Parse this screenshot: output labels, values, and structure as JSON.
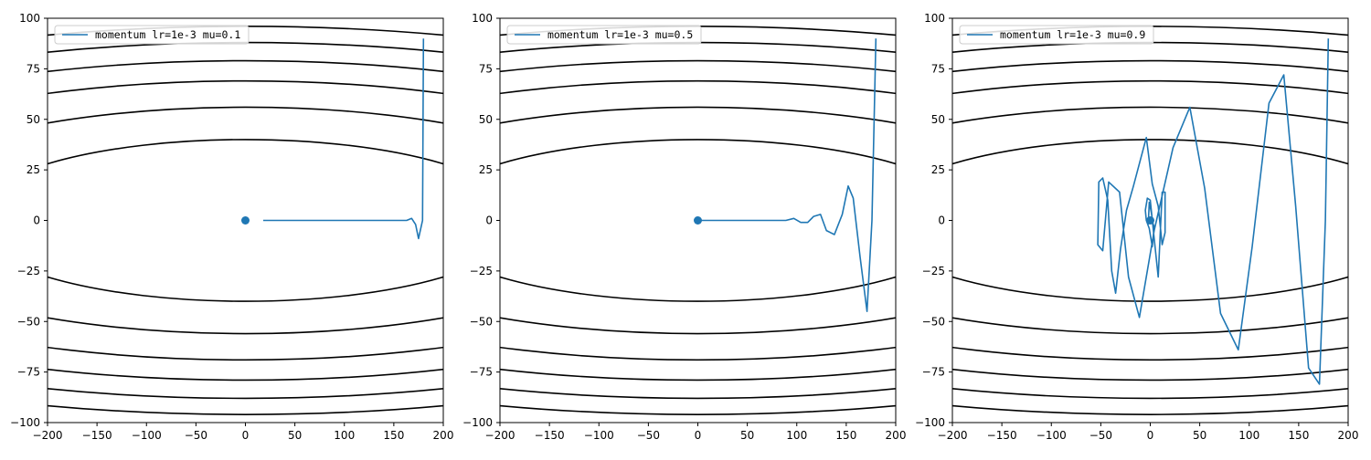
{
  "figure": {
    "background": "#ffffff"
  },
  "chart_data": [
    {
      "type": "line",
      "title": "",
      "xlabel": "",
      "ylabel": "",
      "xlim": [
        -200,
        200
      ],
      "ylim": [
        -100,
        100
      ],
      "xticks": [
        -200,
        -150,
        -100,
        -50,
        0,
        50,
        100,
        150,
        200
      ],
      "yticks": [
        -100,
        -75,
        -50,
        -25,
        0,
        25,
        50,
        75,
        100
      ],
      "grid": false,
      "legend": {
        "position": "upper-left",
        "entries": [
          "momentum lr=1e-3 mu=0.1"
        ]
      },
      "contour": {
        "color": "#000000",
        "levels": [
          40,
          56,
          69,
          79,
          88,
          96
        ]
      },
      "series": [
        {
          "name": "momentum lr=1e-3 mu=0.1",
          "color": "#1f77b4",
          "x": [
            180,
            179,
            175,
            172,
            168,
            163,
            150,
            120,
            80,
            40,
            18
          ],
          "y": [
            90,
            0,
            -9,
            -2,
            1,
            0,
            0,
            0,
            0,
            0,
            0
          ]
        }
      ],
      "marker": {
        "x": 0,
        "y": 0,
        "color": "#1f77b4"
      }
    },
    {
      "type": "line",
      "title": "",
      "xlabel": "",
      "ylabel": "",
      "xlim": [
        -200,
        200
      ],
      "ylim": [
        -100,
        100
      ],
      "xticks": [
        -200,
        -150,
        -100,
        -50,
        0,
        50,
        100,
        150,
        200
      ],
      "yticks": [
        -100,
        -75,
        -50,
        -25,
        0,
        25,
        50,
        75,
        100
      ],
      "grid": false,
      "legend": {
        "position": "upper-left",
        "entries": [
          "momentum lr=1e-3 mu=0.5"
        ]
      },
      "contour": {
        "color": "#000000",
        "levels": [
          40,
          56,
          69,
          79,
          88,
          96
        ]
      },
      "series": [
        {
          "name": "momentum lr=1e-3 mu=0.5",
          "color": "#1f77b4",
          "x": [
            180,
            176,
            171,
            164,
            157,
            152,
            146,
            138,
            130,
            124,
            117,
            111,
            104,
            97,
            89,
            80,
            60,
            30,
            0
          ],
          "y": [
            90,
            0,
            -45,
            -18,
            11,
            17,
            3,
            -7,
            -5,
            3,
            2,
            -1,
            -1,
            1,
            0,
            0,
            0,
            0,
            0
          ]
        }
      ],
      "marker": {
        "x": 0,
        "y": 0,
        "color": "#1f77b4"
      }
    },
    {
      "type": "line",
      "title": "",
      "xlabel": "",
      "ylabel": "",
      "xlim": [
        -200,
        200
      ],
      "ylim": [
        -100,
        100
      ],
      "xticks": [
        -200,
        -150,
        -100,
        -50,
        0,
        50,
        100,
        150,
        200
      ],
      "yticks": [
        -100,
        -75,
        -50,
        -25,
        0,
        25,
        50,
        75,
        100
      ],
      "grid": false,
      "legend": {
        "position": "upper-left",
        "entries": [
          "momentum lr=1e-3 mu=0.9"
        ]
      },
      "contour": {
        "color": "#000000",
        "levels": [
          40,
          56,
          69,
          79,
          88,
          96
        ]
      },
      "series": [
        {
          "name": "momentum lr=1e-3 mu=0.9",
          "color": "#1f77b4",
          "x": [
            180,
            177,
            171,
            160,
            147,
            135,
            120,
            103,
            89,
            71,
            55,
            40,
            23,
            4,
            -11,
            -22,
            -31,
            -42,
            -48,
            -53,
            -52,
            -48,
            -43,
            -39,
            -35,
            -30,
            -24,
            -17,
            -10,
            -4,
            2,
            8,
            12,
            15,
            15,
            12,
            8,
            4,
            0,
            -3,
            -5,
            -4,
            -1,
            2,
            4,
            3,
            1,
            -1,
            -2
          ],
          "y": [
            90,
            0,
            -81,
            -73,
            7,
            72,
            58,
            -13,
            -64,
            -46,
            16,
            56,
            36,
            -5,
            -48,
            -28,
            14,
            19,
            -15,
            -12,
            19,
            21,
            10,
            -25,
            -36,
            -14,
            5,
            17,
            30,
            41,
            18,
            7,
            -12,
            -6,
            14,
            14,
            -28,
            -9,
            10,
            11,
            5,
            0,
            -4,
            -13,
            -3,
            -2,
            4,
            9,
            -2
          ]
        }
      ],
      "marker": {
        "x": 0,
        "y": 0,
        "color": "#1f77b4"
      }
    }
  ]
}
